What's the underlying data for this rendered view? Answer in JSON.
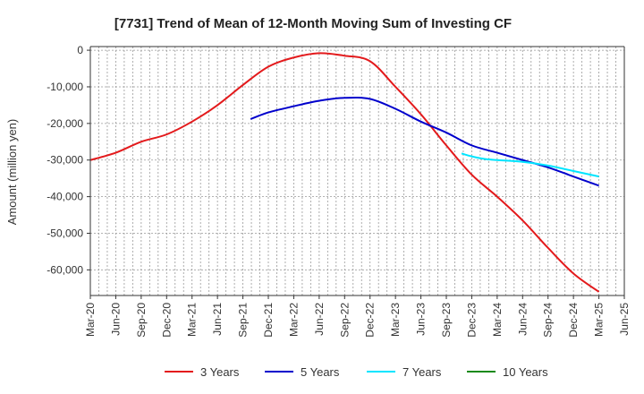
{
  "chart_data": {
    "type": "line",
    "title": "[7731]  Trend of Mean of 12-Month Moving Sum of Investing CF",
    "xlabel": "",
    "ylabel": "Amount (million yen)",
    "ylim": [
      -67000,
      1000
    ],
    "yticks": [
      0,
      -10000,
      -20000,
      -30000,
      -40000,
      -50000,
      -60000
    ],
    "ytick_labels": [
      "0",
      "-10,000",
      "-20,000",
      "-30,000",
      "-40,000",
      "-50,000",
      "-60,000"
    ],
    "xticks": [
      "Mar-20",
      "Jun-20",
      "Sep-20",
      "Dec-20",
      "Mar-21",
      "Jun-21",
      "Sep-21",
      "Dec-21",
      "Mar-22",
      "Jun-22",
      "Sep-22",
      "Dec-22",
      "Mar-23",
      "Jun-23",
      "Sep-23",
      "Dec-23",
      "Mar-24",
      "Jun-24",
      "Sep-24",
      "Dec-24",
      "Mar-25",
      "Jun-25"
    ],
    "grid": true,
    "legend_position": "bottom",
    "series": [
      {
        "name": "3 Years",
        "color": "#e31a1c",
        "points": [
          [
            0,
            -30000
          ],
          [
            1,
            -28000
          ],
          [
            2,
            -25000
          ],
          [
            3,
            -23000
          ],
          [
            4,
            -19500
          ],
          [
            5,
            -15000
          ],
          [
            6,
            -9500
          ],
          [
            7,
            -4500
          ],
          [
            8,
            -2000
          ],
          [
            9,
            -800
          ],
          [
            10,
            -1500
          ],
          [
            11,
            -3000
          ],
          [
            12,
            -10000
          ],
          [
            13,
            -17500
          ],
          [
            14,
            -26000
          ],
          [
            15,
            -34000
          ],
          [
            16,
            -40000
          ],
          [
            17,
            -46500
          ],
          [
            18,
            -54000
          ],
          [
            19,
            -61000
          ],
          [
            20,
            -66000
          ]
        ]
      },
      {
        "name": "5 Years",
        "color": "#0000cc",
        "points": [
          [
            6.3,
            -18800
          ],
          [
            7,
            -17000
          ],
          [
            8,
            -15300
          ],
          [
            9,
            -13800
          ],
          [
            10,
            -13000
          ],
          [
            11,
            -13300
          ],
          [
            12,
            -16000
          ],
          [
            13,
            -19500
          ],
          [
            14,
            -22500
          ],
          [
            15,
            -26000
          ],
          [
            16,
            -28000
          ],
          [
            17,
            -30000
          ],
          [
            18,
            -32000
          ],
          [
            19,
            -34500
          ],
          [
            20,
            -37000
          ]
        ]
      },
      {
        "name": "7 Years",
        "color": "#00e5ff",
        "points": [
          [
            14.6,
            -28200
          ],
          [
            15,
            -29000
          ],
          [
            15.5,
            -29700
          ],
          [
            16,
            -30000
          ],
          [
            17,
            -30500
          ],
          [
            18,
            -31500
          ],
          [
            19,
            -33000
          ],
          [
            20,
            -34500
          ]
        ]
      },
      {
        "name": "10 Years",
        "color": "#1a8a1a",
        "points": []
      }
    ]
  }
}
